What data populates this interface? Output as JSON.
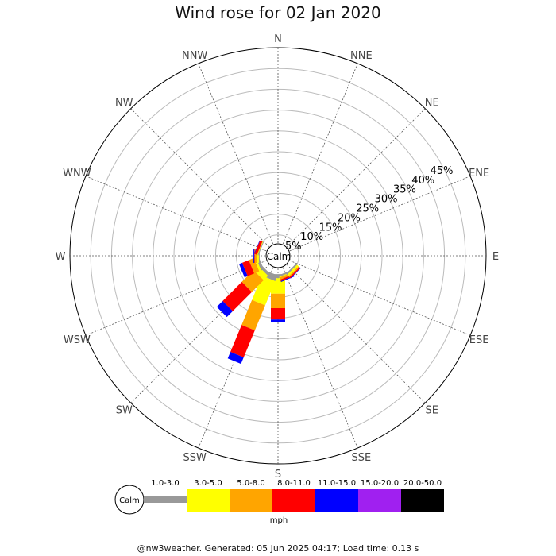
{
  "title": "Wind rose for 02 Jan 2020",
  "footer": "@nw3weather. Generated: 05 Jun 2025 04:17; Load time: 0.13 s",
  "chart_data": {
    "type": "windrose",
    "calm_label": "Calm",
    "units": "mph",
    "radial_max": 50,
    "radial_ticks": [
      5,
      10,
      15,
      20,
      25,
      30,
      35,
      40,
      45
    ],
    "radial_tick_labels": [
      "5%",
      "10%",
      "15%",
      "20%",
      "25%",
      "30%",
      "35%",
      "40%",
      "45%"
    ],
    "directions": [
      "N",
      "NNE",
      "NE",
      "ENE",
      "E",
      "ESE",
      "SE",
      "SSE",
      "S",
      "SSW",
      "SW",
      "WSW",
      "W",
      "WNW",
      "NW",
      "NNW"
    ],
    "speed_bins": [
      "1.0-3.0",
      "3.0-5.0",
      "5.0-8.0",
      "8.0-11.0",
      "11.0-15.0",
      "15.0-20.0",
      "20.0-50.0"
    ],
    "colors": [
      "#999999",
      "#ffff00",
      "#ffa500",
      "#ff0000",
      "#0000ff",
      "#a020f0",
      "#000000"
    ],
    "calm_radius_pct": 4.4,
    "series": [
      {
        "direction": "S",
        "values": [
          1.0,
          3.7,
          3.5,
          2.7,
          0.7,
          0,
          0
        ]
      },
      {
        "direction": "SSW",
        "values": [
          1.5,
          6.3,
          6.5,
          7.0,
          1.7,
          0,
          0
        ]
      },
      {
        "direction": "SW",
        "values": [
          0.7,
          1.5,
          4.0,
          6.5,
          2.0,
          0,
          0
        ]
      },
      {
        "direction": "WSW",
        "values": [
          0.7,
          0.5,
          1.3,
          1.7,
          0.8,
          0,
          0
        ]
      },
      {
        "direction": "W",
        "values": [
          0.2,
          0.4,
          0.6,
          0.1,
          0.2,
          0,
          0
        ]
      },
      {
        "direction": "WNW",
        "values": [
          0.2,
          0.1,
          0.1,
          0.6,
          0.1,
          0,
          0
        ]
      },
      {
        "direction": "SSE",
        "values": [
          0.4,
          0.2,
          0.5,
          0.4,
          0.2,
          0,
          0
        ]
      },
      {
        "direction": "SE",
        "values": [
          0.4,
          0.5,
          0.3,
          0.3,
          0.1,
          0,
          0
        ]
      }
    ]
  }
}
